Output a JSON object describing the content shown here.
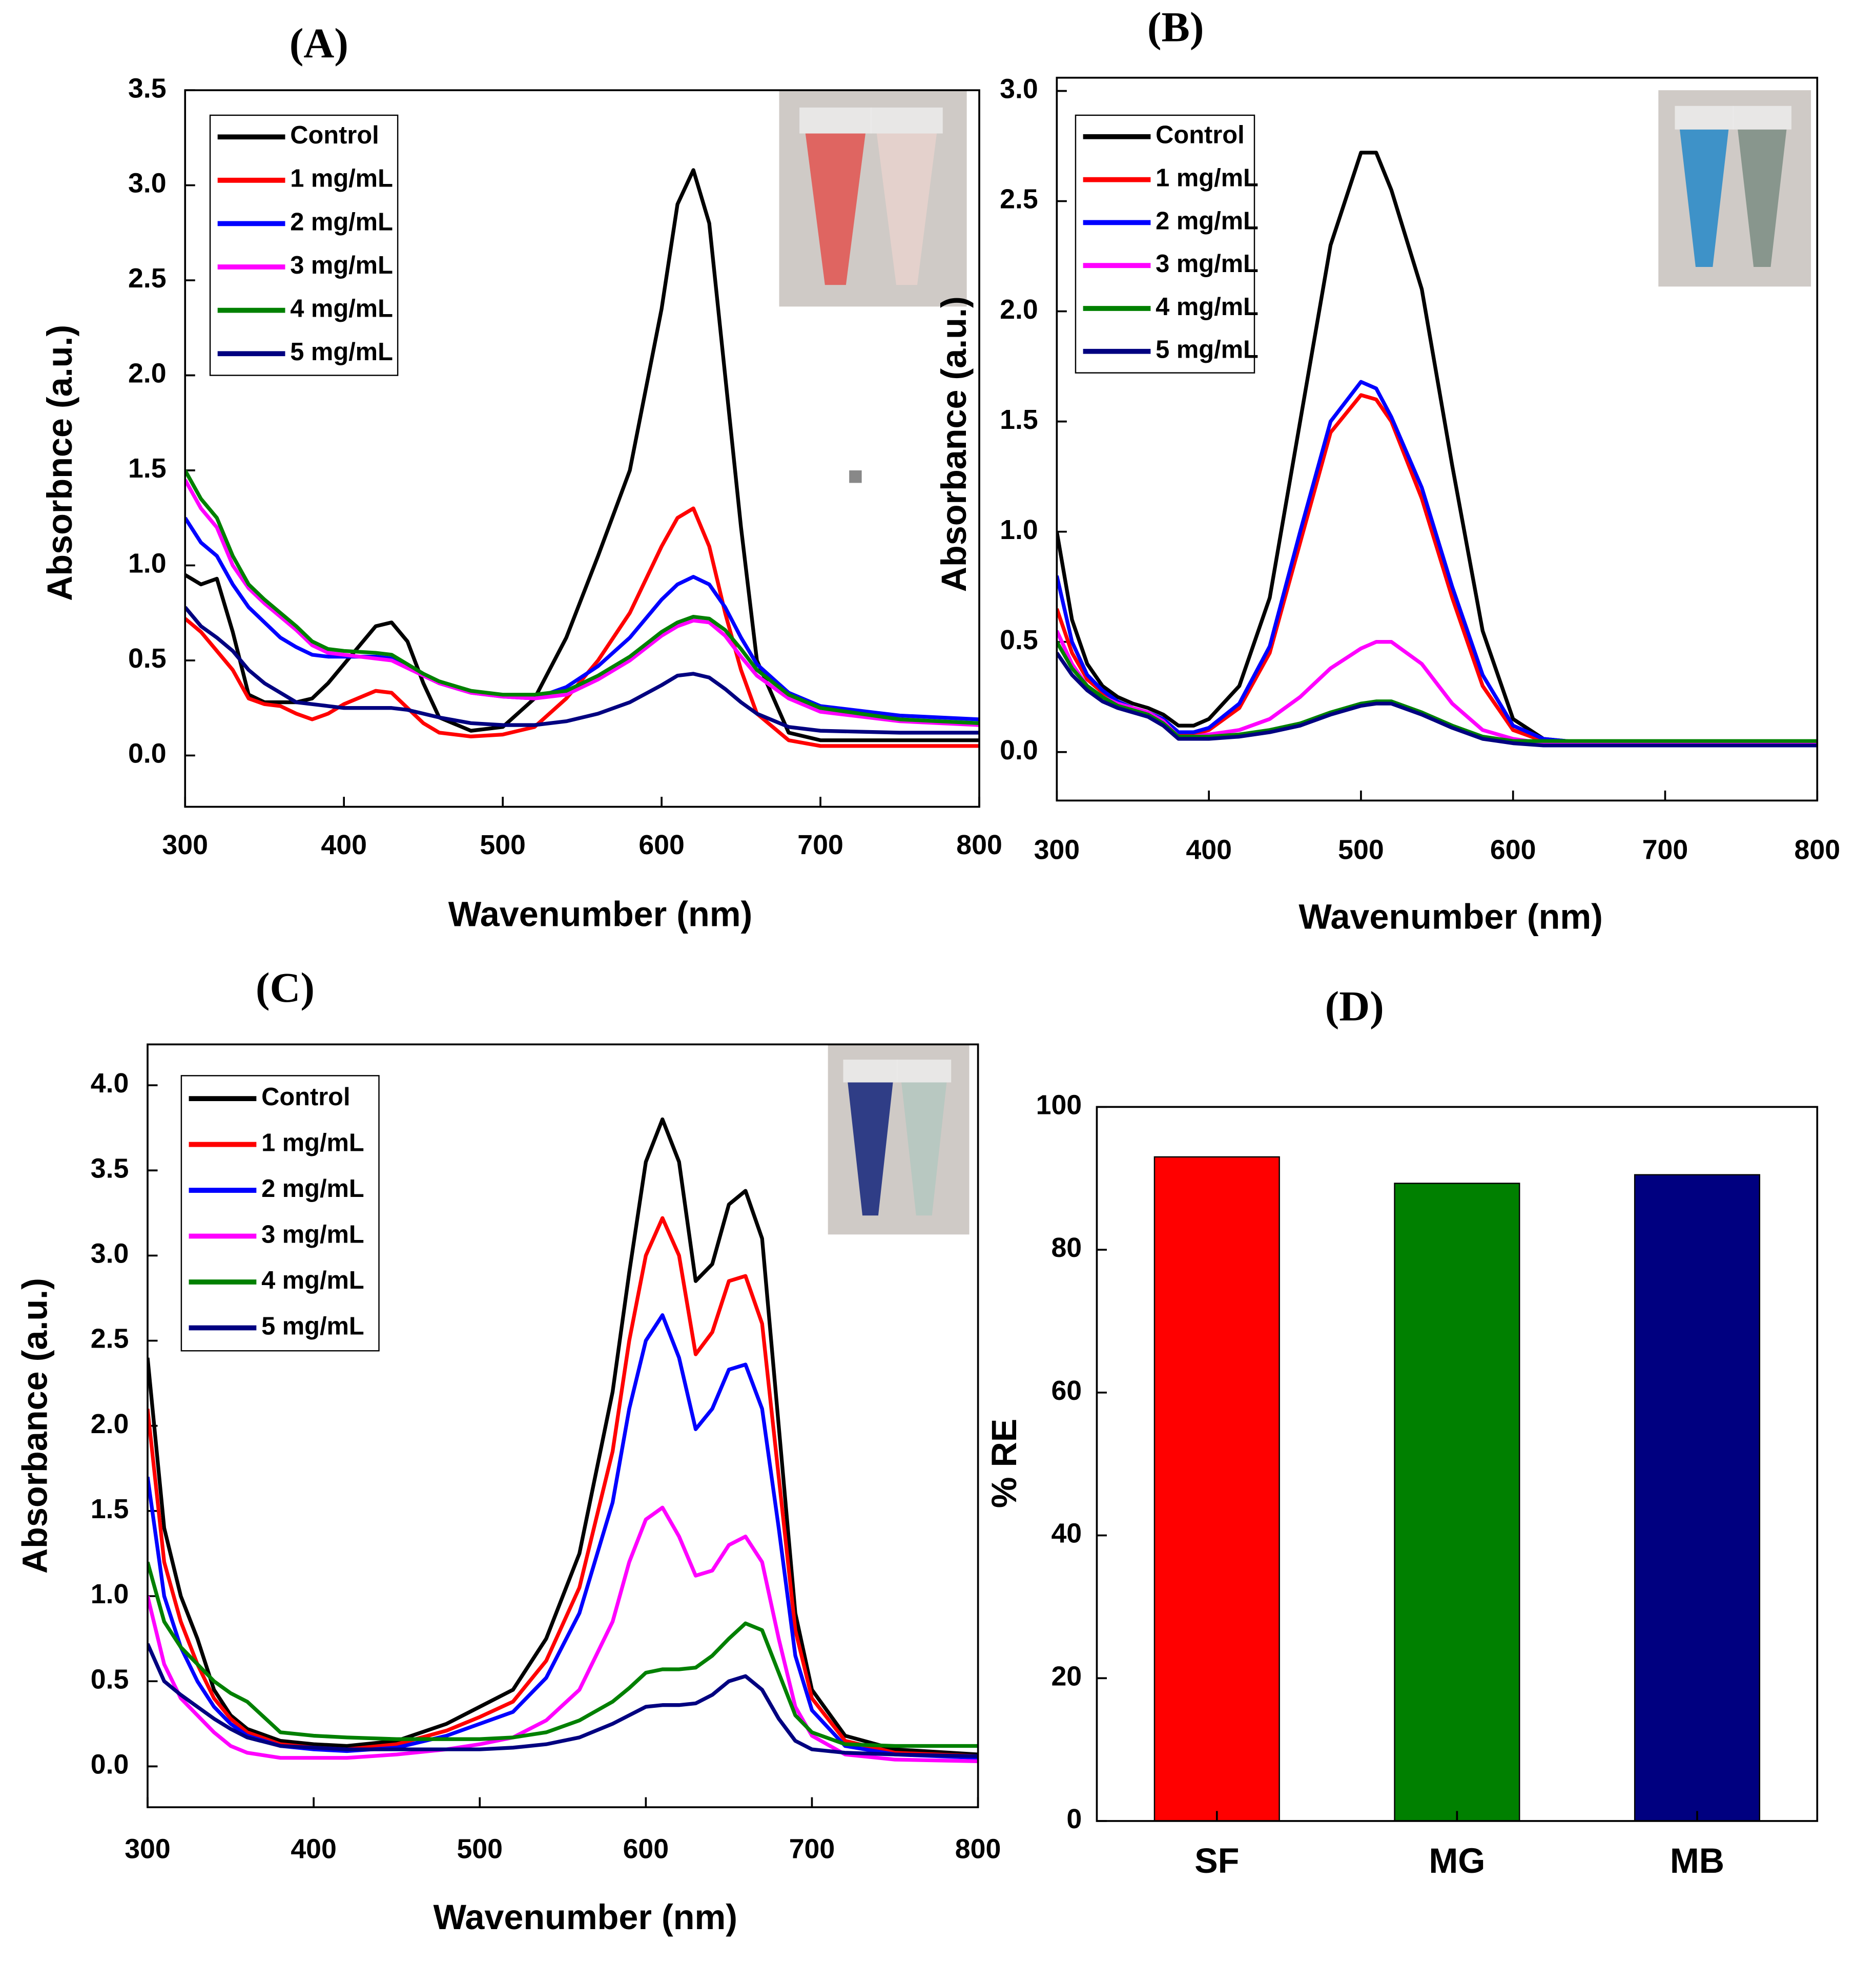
{
  "chart_data": [
    {
      "type": "line",
      "title": "(A)",
      "xlabel": "Wavenumber (nm)",
      "ylabel": "Absorbnce (a.u.)",
      "xlim": [
        300,
        800
      ],
      "xticks": [
        300,
        400,
        500,
        600,
        700,
        800
      ],
      "ylim": [
        -0.27,
        3.5
      ],
      "yticks": [
        {
          "value": 0,
          "label": "0.0"
        },
        0.5,
        {
          "value": 1,
          "label": "1.0"
        },
        1.5,
        {
          "value": 2,
          "label": "2.0"
        },
        2.5,
        {
          "value": 3,
          "label": "3.0"
        },
        3.5
      ],
      "x": [
        300,
        310,
        320,
        330,
        340,
        350,
        360,
        370,
        380,
        390,
        400,
        420,
        430,
        440,
        450,
        460,
        480,
        500,
        520,
        540,
        560,
        580,
        600,
        610,
        620,
        630,
        640,
        650,
        660,
        680,
        700,
        750,
        800
      ],
      "series": [
        {
          "name": "Control",
          "color": "#000000",
          "values": [
            0.95,
            0.9,
            0.93,
            0.65,
            0.32,
            0.28,
            0.28,
            0.28,
            0.3,
            0.38,
            0.48,
            0.68,
            0.7,
            0.6,
            0.38,
            0.2,
            0.13,
            0.15,
            0.3,
            0.62,
            1.05,
            1.5,
            2.35,
            2.9,
            3.08,
            2.8,
            2.0,
            1.2,
            0.5,
            0.12,
            0.08,
            0.08,
            0.08
          ]
        },
        {
          "name": "1 mg/mL",
          "color": "#ff0000",
          "values": [
            0.72,
            0.65,
            0.55,
            0.45,
            0.3,
            0.27,
            0.26,
            0.22,
            0.19,
            0.22,
            0.27,
            0.34,
            0.33,
            0.25,
            0.17,
            0.12,
            0.1,
            0.11,
            0.15,
            0.3,
            0.5,
            0.75,
            1.1,
            1.25,
            1.3,
            1.1,
            0.75,
            0.45,
            0.22,
            0.08,
            0.05,
            0.05,
            0.05
          ]
        },
        {
          "name": "2 mg/mL",
          "color": "#0000ff",
          "values": [
            1.25,
            1.12,
            1.05,
            0.9,
            0.78,
            0.7,
            0.62,
            0.57,
            0.53,
            0.52,
            0.52,
            0.52,
            0.51,
            0.47,
            0.42,
            0.38,
            0.33,
            0.31,
            0.3,
            0.36,
            0.47,
            0.62,
            0.82,
            0.9,
            0.94,
            0.9,
            0.78,
            0.62,
            0.48,
            0.33,
            0.26,
            0.21,
            0.19
          ]
        },
        {
          "name": "3 mg/mL",
          "color": "#ff00ff",
          "values": [
            1.45,
            1.3,
            1.2,
            1.0,
            0.88,
            0.8,
            0.73,
            0.66,
            0.58,
            0.54,
            0.53,
            0.51,
            0.5,
            0.46,
            0.42,
            0.38,
            0.33,
            0.31,
            0.3,
            0.32,
            0.4,
            0.5,
            0.63,
            0.68,
            0.71,
            0.7,
            0.63,
            0.52,
            0.42,
            0.3,
            0.23,
            0.18,
            0.16
          ]
        },
        {
          "name": "4 mg/mL",
          "color": "#008000",
          "values": [
            1.5,
            1.35,
            1.25,
            1.05,
            0.9,
            0.82,
            0.75,
            0.68,
            0.6,
            0.56,
            0.55,
            0.54,
            0.53,
            0.48,
            0.43,
            0.39,
            0.34,
            0.32,
            0.32,
            0.34,
            0.42,
            0.52,
            0.65,
            0.7,
            0.73,
            0.72,
            0.66,
            0.56,
            0.45,
            0.32,
            0.25,
            0.19,
            0.17
          ]
        },
        {
          "name": "5 mg/mL",
          "color": "#000080",
          "values": [
            0.78,
            0.68,
            0.62,
            0.55,
            0.45,
            0.38,
            0.33,
            0.28,
            0.27,
            0.26,
            0.25,
            0.25,
            0.25,
            0.24,
            0.22,
            0.2,
            0.17,
            0.16,
            0.16,
            0.18,
            0.22,
            0.28,
            0.37,
            0.42,
            0.43,
            0.41,
            0.35,
            0.28,
            0.22,
            0.15,
            0.13,
            0.12,
            0.12
          ]
        }
      ]
    },
    {
      "type": "line",
      "title": "(B)",
      "xlabel": "Wavenumber (nm)",
      "ylabel": "Absorbance (a.u.)",
      "xlim": [
        300,
        800
      ],
      "xticks": [
        300,
        400,
        500,
        600,
        700,
        800
      ],
      "ylim": [
        -0.22,
        3.06
      ],
      "yticks": [
        {
          "value": 0,
          "label": "0.0"
        },
        0.5,
        {
          "value": 1,
          "label": "1.0"
        },
        1.5,
        {
          "value": 2,
          "label": "2.0"
        },
        2.5,
        {
          "value": 3,
          "label": "3.0"
        }
      ],
      "x": [
        300,
        310,
        320,
        330,
        340,
        350,
        360,
        370,
        380,
        390,
        400,
        420,
        440,
        460,
        480,
        500,
        510,
        520,
        540,
        560,
        580,
        600,
        620,
        650,
        700,
        750,
        800
      ],
      "series": [
        {
          "name": "Control",
          "color": "#000000",
          "values": [
            1.0,
            0.6,
            0.4,
            0.3,
            0.25,
            0.22,
            0.2,
            0.17,
            0.12,
            0.12,
            0.15,
            0.3,
            0.7,
            1.5,
            2.3,
            2.72,
            2.72,
            2.55,
            2.1,
            1.3,
            0.55,
            0.15,
            0.06,
            0.04,
            0.04,
            0.04,
            0.04
          ]
        },
        {
          "name": "1 mg/mL",
          "color": "#ff0000",
          "values": [
            0.65,
            0.45,
            0.33,
            0.27,
            0.23,
            0.2,
            0.18,
            0.15,
            0.08,
            0.08,
            0.1,
            0.2,
            0.45,
            0.95,
            1.45,
            1.62,
            1.6,
            1.5,
            1.15,
            0.7,
            0.3,
            0.1,
            0.05,
            0.04,
            0.04,
            0.04,
            0.04
          ]
        },
        {
          "name": "2 mg/mL",
          "color": "#0000ff",
          "values": [
            0.8,
            0.5,
            0.35,
            0.28,
            0.23,
            0.2,
            0.18,
            0.15,
            0.09,
            0.09,
            0.11,
            0.22,
            0.48,
            1.0,
            1.5,
            1.68,
            1.65,
            1.52,
            1.2,
            0.75,
            0.35,
            0.12,
            0.06,
            0.04,
            0.04,
            0.04,
            0.04
          ]
        },
        {
          "name": "3 mg/mL",
          "color": "#ff00ff",
          "values": [
            0.55,
            0.4,
            0.3,
            0.25,
            0.22,
            0.2,
            0.18,
            0.14,
            0.07,
            0.07,
            0.08,
            0.1,
            0.15,
            0.25,
            0.38,
            0.47,
            0.5,
            0.5,
            0.4,
            0.22,
            0.1,
            0.06,
            0.04,
            0.04,
            0.04,
            0.04,
            0.04
          ]
        },
        {
          "name": "4 mg/mL",
          "color": "#008000",
          "values": [
            0.5,
            0.38,
            0.3,
            0.25,
            0.21,
            0.19,
            0.17,
            0.13,
            0.07,
            0.07,
            0.07,
            0.08,
            0.1,
            0.13,
            0.18,
            0.22,
            0.23,
            0.23,
            0.18,
            0.12,
            0.07,
            0.05,
            0.05,
            0.05,
            0.05,
            0.05,
            0.05
          ]
        },
        {
          "name": "5 mg/mL",
          "color": "#000080",
          "values": [
            0.45,
            0.35,
            0.28,
            0.23,
            0.2,
            0.18,
            0.16,
            0.12,
            0.06,
            0.06,
            0.06,
            0.07,
            0.09,
            0.12,
            0.17,
            0.21,
            0.22,
            0.22,
            0.17,
            0.11,
            0.06,
            0.04,
            0.03,
            0.03,
            0.03,
            0.03,
            0.03
          ]
        }
      ]
    },
    {
      "type": "line",
      "title": "(C)",
      "xlabel": "Wavenumber (nm)",
      "ylabel": "Absorbance (a.u.)",
      "xlim": [
        300,
        800
      ],
      "xticks": [
        300,
        400,
        500,
        600,
        700,
        800
      ],
      "ylim": [
        -0.24,
        4.24
      ],
      "yticks": [
        {
          "value": 0,
          "label": "0.0"
        },
        0.5,
        {
          "value": 1,
          "label": "1.0"
        },
        1.5,
        {
          "value": 2,
          "label": "2.0"
        },
        2.5,
        {
          "value": 3,
          "label": "3.0"
        },
        3.5,
        {
          "value": 4,
          "label": "4.0"
        }
      ],
      "x": [
        300,
        310,
        320,
        330,
        340,
        350,
        360,
        380,
        400,
        420,
        450,
        480,
        500,
        520,
        540,
        560,
        580,
        590,
        600,
        610,
        620,
        630,
        640,
        650,
        660,
        670,
        680,
        690,
        700,
        720,
        750,
        800
      ],
      "series": [
        {
          "name": "Control",
          "color": "#000000",
          "values": [
            2.4,
            1.4,
            1.0,
            0.75,
            0.45,
            0.3,
            0.22,
            0.15,
            0.13,
            0.12,
            0.15,
            0.25,
            0.35,
            0.45,
            0.75,
            1.25,
            2.2,
            2.9,
            3.55,
            3.8,
            3.55,
            2.85,
            2.95,
            3.3,
            3.38,
            3.1,
            2.0,
            0.9,
            0.45,
            0.18,
            0.1,
            0.07
          ]
        },
        {
          "name": "1 mg/mL",
          "color": "#ff0000",
          "values": [
            2.1,
            1.2,
            0.85,
            0.6,
            0.4,
            0.28,
            0.2,
            0.13,
            0.11,
            0.1,
            0.13,
            0.21,
            0.29,
            0.38,
            0.62,
            1.05,
            1.85,
            2.5,
            3.0,
            3.22,
            3.0,
            2.42,
            2.55,
            2.85,
            2.88,
            2.6,
            1.7,
            0.8,
            0.4,
            0.15,
            0.08,
            0.06
          ]
        },
        {
          "name": "2 mg/mL",
          "color": "#0000ff",
          "values": [
            1.7,
            1.0,
            0.7,
            0.5,
            0.35,
            0.25,
            0.18,
            0.12,
            0.1,
            0.09,
            0.11,
            0.18,
            0.25,
            0.32,
            0.52,
            0.9,
            1.55,
            2.1,
            2.5,
            2.65,
            2.4,
            1.98,
            2.1,
            2.33,
            2.36,
            2.1,
            1.4,
            0.65,
            0.33,
            0.12,
            0.07,
            0.05
          ]
        },
        {
          "name": "3 mg/mL",
          "color": "#ff00ff",
          "values": [
            1.0,
            0.6,
            0.4,
            0.3,
            0.2,
            0.12,
            0.08,
            0.05,
            0.05,
            0.05,
            0.07,
            0.1,
            0.13,
            0.17,
            0.27,
            0.45,
            0.85,
            1.2,
            1.45,
            1.52,
            1.35,
            1.12,
            1.15,
            1.3,
            1.35,
            1.2,
            0.75,
            0.35,
            0.18,
            0.07,
            0.04,
            0.03
          ]
        },
        {
          "name": "4 mg/mL",
          "color": "#008000",
          "values": [
            1.2,
            0.85,
            0.7,
            0.6,
            0.5,
            0.43,
            0.38,
            0.2,
            0.18,
            0.17,
            0.16,
            0.16,
            0.16,
            0.17,
            0.2,
            0.27,
            0.38,
            0.46,
            0.55,
            0.57,
            0.57,
            0.58,
            0.65,
            0.75,
            0.84,
            0.8,
            0.55,
            0.3,
            0.2,
            0.13,
            0.12,
            0.12
          ]
        },
        {
          "name": "5 mg/mL",
          "color": "#000080",
          "values": [
            0.72,
            0.5,
            0.42,
            0.35,
            0.28,
            0.22,
            0.17,
            0.12,
            0.11,
            0.1,
            0.1,
            0.1,
            0.1,
            0.11,
            0.13,
            0.17,
            0.25,
            0.3,
            0.35,
            0.36,
            0.36,
            0.37,
            0.42,
            0.5,
            0.53,
            0.45,
            0.28,
            0.15,
            0.1,
            0.08,
            0.07,
            0.06
          ]
        }
      ]
    },
    {
      "type": "bar",
      "title": "(D)",
      "ylabel": "% RE",
      "categories": [
        "SF",
        "MG",
        "MB"
      ],
      "values": [
        93,
        89.3,
        90.5
      ],
      "colors": [
        "#ff0000",
        "#008000",
        "#000080"
      ],
      "ylim": [
        0,
        100
      ],
      "yticks": [
        0,
        20,
        40,
        60,
        80,
        100
      ]
    }
  ]
}
